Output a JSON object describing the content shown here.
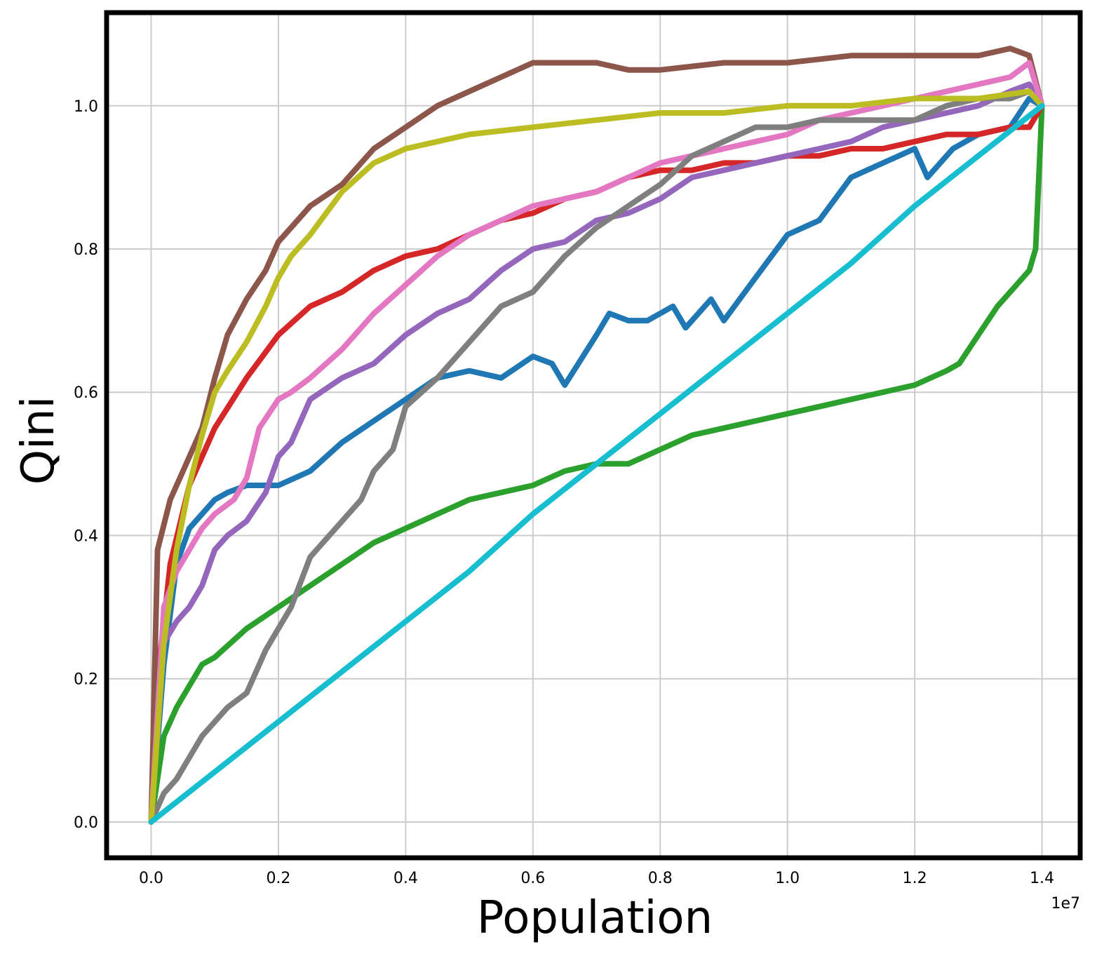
{
  "chart_data": {
    "type": "line",
    "title": "",
    "xlabel": "Population",
    "ylabel": "Qini",
    "x_offset_label": "1e7",
    "xlim": [
      -0.07,
      1.46
    ],
    "ylim": [
      -0.05,
      1.13
    ],
    "x_ticks": [
      0.0,
      0.2,
      0.4,
      0.6,
      0.8,
      1.0,
      1.2,
      1.4
    ],
    "x_tick_labels": [
      "0.0",
      "0.2",
      "0.4",
      "0.6",
      "0.8",
      "1.0",
      "1.2",
      "1.4"
    ],
    "y_ticks": [
      0.0,
      0.2,
      0.4,
      0.6,
      0.8,
      1.0
    ],
    "y_tick_labels": [
      "0.0",
      "0.2",
      "0.4",
      "0.6",
      "0.8",
      "1.0"
    ],
    "grid": true,
    "series": [
      {
        "color": "#1f77b4",
        "points": [
          [
            0,
            0
          ],
          [
            0.02,
            0.22
          ],
          [
            0.04,
            0.36
          ],
          [
            0.06,
            0.41
          ],
          [
            0.08,
            0.43
          ],
          [
            0.1,
            0.45
          ],
          [
            0.12,
            0.46
          ],
          [
            0.15,
            0.47
          ],
          [
            0.2,
            0.47
          ],
          [
            0.25,
            0.49
          ],
          [
            0.3,
            0.53
          ],
          [
            0.35,
            0.56
          ],
          [
            0.4,
            0.59
          ],
          [
            0.45,
            0.62
          ],
          [
            0.5,
            0.63
          ],
          [
            0.55,
            0.62
          ],
          [
            0.6,
            0.65
          ],
          [
            0.63,
            0.64
          ],
          [
            0.65,
            0.61
          ],
          [
            0.7,
            0.68
          ],
          [
            0.72,
            0.71
          ],
          [
            0.75,
            0.7
          ],
          [
            0.78,
            0.7
          ],
          [
            0.82,
            0.72
          ],
          [
            0.84,
            0.69
          ],
          [
            0.88,
            0.73
          ],
          [
            0.9,
            0.7
          ],
          [
            0.95,
            0.76
          ],
          [
            1.0,
            0.82
          ],
          [
            1.05,
            0.84
          ],
          [
            1.1,
            0.9
          ],
          [
            1.15,
            0.92
          ],
          [
            1.2,
            0.94
          ],
          [
            1.22,
            0.9
          ],
          [
            1.26,
            0.94
          ],
          [
            1.3,
            0.96
          ],
          [
            1.35,
            0.97
          ],
          [
            1.38,
            1.01
          ],
          [
            1.4,
            1.0
          ]
        ]
      },
      {
        "color": "#ff7f0e",
        "points": []
      },
      {
        "color": "#2ca02c",
        "points": [
          [
            0,
            0
          ],
          [
            0.02,
            0.12
          ],
          [
            0.04,
            0.16
          ],
          [
            0.06,
            0.19
          ],
          [
            0.08,
            0.22
          ],
          [
            0.1,
            0.23
          ],
          [
            0.15,
            0.27
          ],
          [
            0.2,
            0.3
          ],
          [
            0.25,
            0.33
          ],
          [
            0.3,
            0.36
          ],
          [
            0.35,
            0.39
          ],
          [
            0.4,
            0.41
          ],
          [
            0.45,
            0.43
          ],
          [
            0.5,
            0.45
          ],
          [
            0.55,
            0.46
          ],
          [
            0.6,
            0.47
          ],
          [
            0.65,
            0.49
          ],
          [
            0.7,
            0.5
          ],
          [
            0.75,
            0.5
          ],
          [
            0.8,
            0.52
          ],
          [
            0.85,
            0.54
          ],
          [
            0.9,
            0.55
          ],
          [
            0.95,
            0.56
          ],
          [
            1.0,
            0.57
          ],
          [
            1.05,
            0.58
          ],
          [
            1.1,
            0.59
          ],
          [
            1.15,
            0.6
          ],
          [
            1.2,
            0.61
          ],
          [
            1.25,
            0.63
          ],
          [
            1.27,
            0.64
          ],
          [
            1.3,
            0.68
          ],
          [
            1.33,
            0.72
          ],
          [
            1.36,
            0.75
          ],
          [
            1.38,
            0.77
          ],
          [
            1.39,
            0.8
          ],
          [
            1.4,
            1.0
          ]
        ]
      },
      {
        "color": "#d62728",
        "points": [
          [
            0,
            0
          ],
          [
            0.01,
            0.2
          ],
          [
            0.03,
            0.36
          ],
          [
            0.06,
            0.47
          ],
          [
            0.1,
            0.55
          ],
          [
            0.15,
            0.62
          ],
          [
            0.2,
            0.68
          ],
          [
            0.25,
            0.72
          ],
          [
            0.3,
            0.74
          ],
          [
            0.35,
            0.77
          ],
          [
            0.4,
            0.79
          ],
          [
            0.45,
            0.8
          ],
          [
            0.5,
            0.82
          ],
          [
            0.55,
            0.84
          ],
          [
            0.6,
            0.85
          ],
          [
            0.65,
            0.87
          ],
          [
            0.7,
            0.88
          ],
          [
            0.75,
            0.9
          ],
          [
            0.8,
            0.91
          ],
          [
            0.85,
            0.91
          ],
          [
            0.9,
            0.92
          ],
          [
            0.95,
            0.92
          ],
          [
            1.0,
            0.93
          ],
          [
            1.05,
            0.93
          ],
          [
            1.1,
            0.94
          ],
          [
            1.15,
            0.94
          ],
          [
            1.2,
            0.95
          ],
          [
            1.25,
            0.96
          ],
          [
            1.3,
            0.96
          ],
          [
            1.35,
            0.97
          ],
          [
            1.38,
            0.97
          ],
          [
            1.4,
            1.0
          ]
        ]
      },
      {
        "color": "#9467bd",
        "points": [
          [
            0,
            0
          ],
          [
            0.02,
            0.25
          ],
          [
            0.04,
            0.28
          ],
          [
            0.06,
            0.3
          ],
          [
            0.08,
            0.33
          ],
          [
            0.1,
            0.38
          ],
          [
            0.12,
            0.4
          ],
          [
            0.15,
            0.42
          ],
          [
            0.18,
            0.46
          ],
          [
            0.2,
            0.51
          ],
          [
            0.22,
            0.53
          ],
          [
            0.25,
            0.59
          ],
          [
            0.3,
            0.62
          ],
          [
            0.35,
            0.64
          ],
          [
            0.4,
            0.68
          ],
          [
            0.45,
            0.71
          ],
          [
            0.5,
            0.73
          ],
          [
            0.55,
            0.77
          ],
          [
            0.6,
            0.8
          ],
          [
            0.65,
            0.81
          ],
          [
            0.7,
            0.84
          ],
          [
            0.75,
            0.85
          ],
          [
            0.8,
            0.87
          ],
          [
            0.85,
            0.9
          ],
          [
            0.9,
            0.91
          ],
          [
            0.95,
            0.92
          ],
          [
            1.0,
            0.93
          ],
          [
            1.05,
            0.94
          ],
          [
            1.1,
            0.95
          ],
          [
            1.15,
            0.97
          ],
          [
            1.2,
            0.98
          ],
          [
            1.25,
            0.99
          ],
          [
            1.3,
            1.0
          ],
          [
            1.35,
            1.02
          ],
          [
            1.38,
            1.03
          ],
          [
            1.4,
            1.0
          ]
        ]
      },
      {
        "color": "#8c564b",
        "points": [
          [
            0,
            0
          ],
          [
            0.01,
            0.38
          ],
          [
            0.03,
            0.45
          ],
          [
            0.05,
            0.49
          ],
          [
            0.08,
            0.55
          ],
          [
            0.1,
            0.62
          ],
          [
            0.12,
            0.68
          ],
          [
            0.15,
            0.73
          ],
          [
            0.18,
            0.77
          ],
          [
            0.2,
            0.81
          ],
          [
            0.22,
            0.83
          ],
          [
            0.25,
            0.86
          ],
          [
            0.3,
            0.89
          ],
          [
            0.35,
            0.94
          ],
          [
            0.4,
            0.97
          ],
          [
            0.45,
            1.0
          ],
          [
            0.5,
            1.02
          ],
          [
            0.55,
            1.04
          ],
          [
            0.6,
            1.06
          ],
          [
            0.65,
            1.06
          ],
          [
            0.7,
            1.06
          ],
          [
            0.75,
            1.05
          ],
          [
            0.8,
            1.05
          ],
          [
            0.9,
            1.06
          ],
          [
            1.0,
            1.06
          ],
          [
            1.1,
            1.07
          ],
          [
            1.2,
            1.07
          ],
          [
            1.3,
            1.07
          ],
          [
            1.35,
            1.08
          ],
          [
            1.38,
            1.07
          ],
          [
            1.4,
            1.0
          ]
        ]
      },
      {
        "color": "#e377c2",
        "points": [
          [
            0,
            0
          ],
          [
            0.02,
            0.3
          ],
          [
            0.04,
            0.35
          ],
          [
            0.06,
            0.38
          ],
          [
            0.08,
            0.41
          ],
          [
            0.1,
            0.43
          ],
          [
            0.13,
            0.45
          ],
          [
            0.15,
            0.48
          ],
          [
            0.17,
            0.55
          ],
          [
            0.2,
            0.59
          ],
          [
            0.22,
            0.6
          ],
          [
            0.25,
            0.62
          ],
          [
            0.3,
            0.66
          ],
          [
            0.35,
            0.71
          ],
          [
            0.4,
            0.75
          ],
          [
            0.45,
            0.79
          ],
          [
            0.5,
            0.82
          ],
          [
            0.55,
            0.84
          ],
          [
            0.6,
            0.86
          ],
          [
            0.65,
            0.87
          ],
          [
            0.7,
            0.88
          ],
          [
            0.75,
            0.9
          ],
          [
            0.8,
            0.92
          ],
          [
            0.85,
            0.93
          ],
          [
            0.9,
            0.94
          ],
          [
            0.95,
            0.95
          ],
          [
            1.0,
            0.96
          ],
          [
            1.05,
            0.98
          ],
          [
            1.1,
            0.99
          ],
          [
            1.15,
            1.0
          ],
          [
            1.2,
            1.01
          ],
          [
            1.25,
            1.02
          ],
          [
            1.3,
            1.03
          ],
          [
            1.35,
            1.04
          ],
          [
            1.38,
            1.06
          ],
          [
            1.4,
            1.0
          ]
        ]
      },
      {
        "color": "#7f7f7f",
        "points": [
          [
            0,
            0
          ],
          [
            0.02,
            0.04
          ],
          [
            0.04,
            0.06
          ],
          [
            0.06,
            0.09
          ],
          [
            0.08,
            0.12
          ],
          [
            0.1,
            0.14
          ],
          [
            0.12,
            0.16
          ],
          [
            0.15,
            0.18
          ],
          [
            0.18,
            0.24
          ],
          [
            0.2,
            0.27
          ],
          [
            0.22,
            0.3
          ],
          [
            0.25,
            0.37
          ],
          [
            0.28,
            0.4
          ],
          [
            0.3,
            0.42
          ],
          [
            0.33,
            0.45
          ],
          [
            0.35,
            0.49
          ],
          [
            0.38,
            0.52
          ],
          [
            0.4,
            0.58
          ],
          [
            0.45,
            0.62
          ],
          [
            0.5,
            0.67
          ],
          [
            0.55,
            0.72
          ],
          [
            0.6,
            0.74
          ],
          [
            0.65,
            0.79
          ],
          [
            0.7,
            0.83
          ],
          [
            0.75,
            0.86
          ],
          [
            0.8,
            0.89
          ],
          [
            0.85,
            0.93
          ],
          [
            0.9,
            0.95
          ],
          [
            0.95,
            0.97
          ],
          [
            1.0,
            0.97
          ],
          [
            1.05,
            0.98
          ],
          [
            1.1,
            0.98
          ],
          [
            1.15,
            0.98
          ],
          [
            1.2,
            0.98
          ],
          [
            1.25,
            1.0
          ],
          [
            1.3,
            1.01
          ],
          [
            1.35,
            1.01
          ],
          [
            1.38,
            1.02
          ],
          [
            1.4,
            1.0
          ]
        ]
      },
      {
        "color": "#bcbd22",
        "points": [
          [
            0,
            0
          ],
          [
            0.02,
            0.25
          ],
          [
            0.04,
            0.38
          ],
          [
            0.06,
            0.47
          ],
          [
            0.08,
            0.54
          ],
          [
            0.1,
            0.6
          ],
          [
            0.12,
            0.63
          ],
          [
            0.15,
            0.67
          ],
          [
            0.18,
            0.72
          ],
          [
            0.2,
            0.76
          ],
          [
            0.22,
            0.79
          ],
          [
            0.25,
            0.82
          ],
          [
            0.3,
            0.88
          ],
          [
            0.35,
            0.92
          ],
          [
            0.4,
            0.94
          ],
          [
            0.45,
            0.95
          ],
          [
            0.5,
            0.96
          ],
          [
            0.6,
            0.97
          ],
          [
            0.7,
            0.98
          ],
          [
            0.8,
            0.99
          ],
          [
            0.9,
            0.99
          ],
          [
            1.0,
            1.0
          ],
          [
            1.1,
            1.0
          ],
          [
            1.2,
            1.01
          ],
          [
            1.3,
            1.01
          ],
          [
            1.38,
            1.02
          ],
          [
            1.4,
            1.0
          ]
        ]
      },
      {
        "color": "#17becf",
        "points": [
          [
            0,
            0
          ],
          [
            0.1,
            0.07
          ],
          [
            0.2,
            0.14
          ],
          [
            0.3,
            0.21
          ],
          [
            0.4,
            0.28
          ],
          [
            0.5,
            0.35
          ],
          [
            0.6,
            0.43
          ],
          [
            0.7,
            0.5
          ],
          [
            0.8,
            0.57
          ],
          [
            0.9,
            0.64
          ],
          [
            1.0,
            0.71
          ],
          [
            1.1,
            0.78
          ],
          [
            1.2,
            0.86
          ],
          [
            1.3,
            0.93
          ],
          [
            1.4,
            1.0
          ]
        ]
      }
    ]
  }
}
